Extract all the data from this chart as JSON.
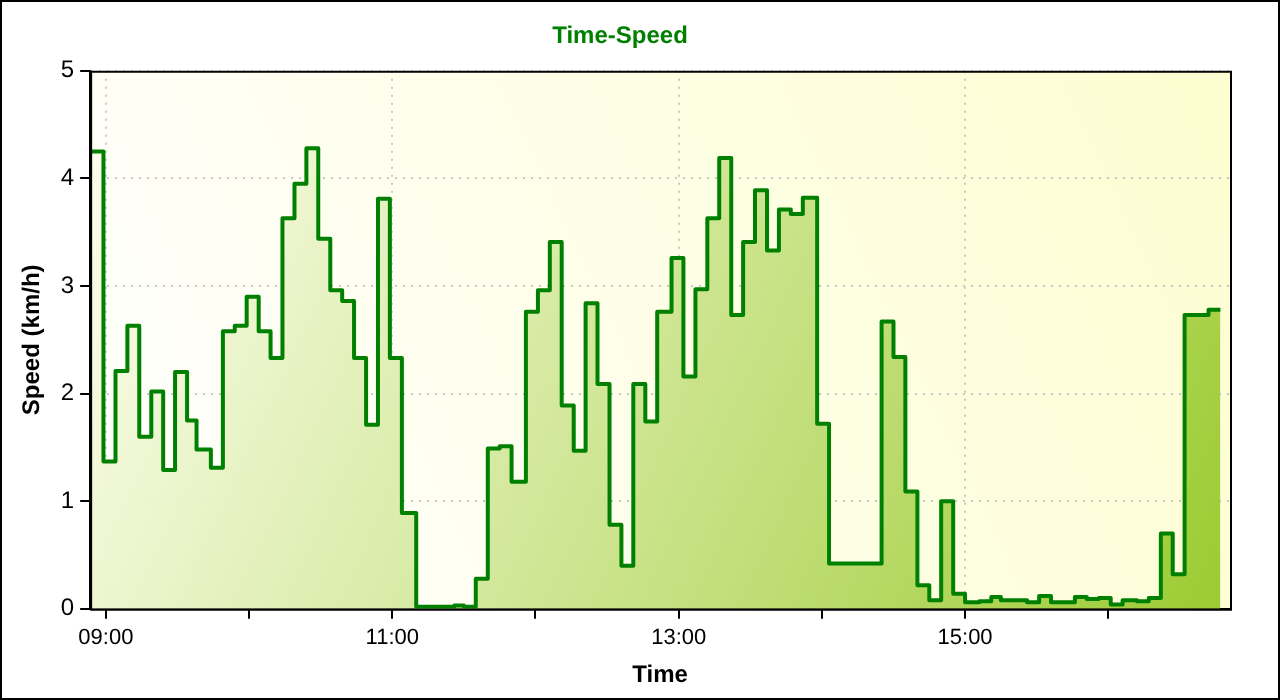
{
  "chart_data": {
    "type": "area",
    "title": "Time-Speed",
    "xlabel": "Time",
    "ylabel": "Speed (km/h)",
    "series": [
      {
        "color": "#008000",
        "x": [
          8.9,
          8.983,
          8.983,
          9.067,
          9.067,
          9.15,
          9.15,
          9.233,
          9.233,
          9.317,
          9.317,
          9.4,
          9.4,
          9.483,
          9.483,
          9.567,
          9.567,
          9.633,
          9.633,
          9.733,
          9.733,
          9.817,
          9.817,
          9.9,
          9.9,
          9.983,
          9.983,
          10.067,
          10.067,
          10.15,
          10.15,
          10.233,
          10.233,
          10.317,
          10.317,
          10.4,
          10.4,
          10.483,
          10.483,
          10.567,
          10.567,
          10.65,
          10.65,
          10.733,
          10.733,
          10.817,
          10.817,
          10.9,
          10.9,
          10.983,
          10.983,
          11.067,
          11.067,
          11.167,
          11.167,
          11.433,
          11.433,
          11.5,
          11.5,
          11.583,
          11.583,
          11.667,
          11.667,
          11.75,
          11.75,
          11.833,
          11.833,
          11.933,
          11.933,
          12.017,
          12.017,
          12.1,
          12.1,
          12.183,
          12.183,
          12.267,
          12.267,
          12.35,
          12.35,
          12.433,
          12.433,
          12.517,
          12.517,
          12.6,
          12.6,
          12.683,
          12.683,
          12.767,
          12.767,
          12.85,
          12.85,
          12.95,
          12.95,
          13.033,
          13.033,
          13.117,
          13.117,
          13.2,
          13.2,
          13.283,
          13.283,
          13.367,
          13.367,
          13.45,
          13.45,
          13.533,
          13.533,
          13.617,
          13.617,
          13.7,
          13.7,
          13.783,
          13.783,
          13.867,
          13.867,
          13.967,
          13.967,
          14.05,
          14.05,
          14.417,
          14.417,
          14.5,
          14.5,
          14.583,
          14.583,
          14.667,
          14.667,
          14.75,
          14.75,
          14.833,
          14.833,
          14.917,
          14.917,
          15,
          15,
          15.1,
          15.1,
          15.183,
          15.183,
          15.25,
          15.25,
          15.433,
          15.433,
          15.517,
          15.517,
          15.6,
          15.6,
          15.767,
          15.767,
          15.85,
          15.85,
          15.933,
          15.933,
          16.017,
          16.017,
          16.1,
          16.1,
          16.2,
          16.2,
          16.283,
          16.283,
          16.367,
          16.367,
          16.45,
          16.45,
          16.533,
          16.533,
          16.7,
          16.7,
          16.783
        ],
        "values": [
          4.25,
          4.25,
          1.37,
          1.37,
          2.21,
          2.21,
          2.63,
          2.63,
          1.6,
          1.6,
          2.02,
          2.02,
          1.29,
          1.29,
          2.2,
          2.2,
          1.75,
          1.75,
          1.48,
          1.48,
          1.31,
          1.31,
          2.58,
          2.58,
          2.63,
          2.63,
          2.9,
          2.9,
          2.58,
          2.58,
          2.33,
          2.33,
          3.63,
          3.63,
          3.95,
          3.95,
          4.28,
          4.28,
          3.44,
          3.44,
          2.96,
          2.96,
          2.86,
          2.86,
          2.33,
          2.33,
          1.71,
          1.71,
          3.81,
          3.81,
          2.33,
          2.33,
          0.89,
          0.89,
          0.02,
          0.02,
          0.03,
          0.03,
          0.02,
          0.02,
          0.28,
          0.28,
          1.49,
          1.49,
          1.51,
          1.51,
          1.18,
          1.18,
          2.76,
          2.76,
          2.96,
          2.96,
          3.41,
          3.41,
          1.89,
          1.89,
          1.47,
          1.47,
          2.84,
          2.84,
          2.09,
          2.09,
          0.78,
          0.78,
          0.4,
          0.4,
          2.09,
          2.09,
          1.74,
          1.74,
          2.76,
          2.76,
          3.26,
          3.26,
          2.16,
          2.16,
          2.97,
          2.97,
          3.63,
          3.63,
          4.19,
          4.19,
          2.73,
          2.73,
          3.41,
          3.41,
          3.89,
          3.89,
          3.33,
          3.33,
          3.71,
          3.71,
          3.67,
          3.67,
          3.82,
          3.82,
          1.72,
          1.72,
          0.42,
          0.42,
          2.67,
          2.67,
          2.34,
          2.34,
          1.09,
          1.09,
          0.22,
          0.22,
          0.08,
          0.08,
          1.0,
          1.0,
          0.14,
          0.14,
          0.06,
          0.06,
          0.07,
          0.07,
          0.11,
          0.11,
          0.08,
          0.08,
          0.06,
          0.06,
          0.12,
          0.12,
          0.06,
          0.06,
          0.11,
          0.11,
          0.09,
          0.09,
          0.1,
          0.1,
          0.04,
          0.04,
          0.08,
          0.08,
          0.07,
          0.07,
          0.1,
          0.1,
          0.7,
          0.7,
          0.32,
          0.32,
          2.73,
          2.73,
          2.78,
          2.78
        ]
      }
    ],
    "xlim": [
      8.89,
      16.85
    ],
    "xticks": [
      {
        "value": 9,
        "label": "09:00"
      },
      {
        "value": 10,
        "label": null
      },
      {
        "value": 11,
        "label": "11:00"
      },
      {
        "value": 12,
        "label": null
      },
      {
        "value": 13,
        "label": "13:00"
      },
      {
        "value": 14,
        "label": null
      },
      {
        "value": 15,
        "label": "15:00"
      },
      {
        "value": 16,
        "label": null
      }
    ],
    "ylim": [
      0,
      5
    ],
    "yticks": [
      0,
      1,
      2,
      3,
      4,
      5
    ],
    "grid": true,
    "legend": false,
    "marker": "none",
    "line_style": "solid"
  }
}
